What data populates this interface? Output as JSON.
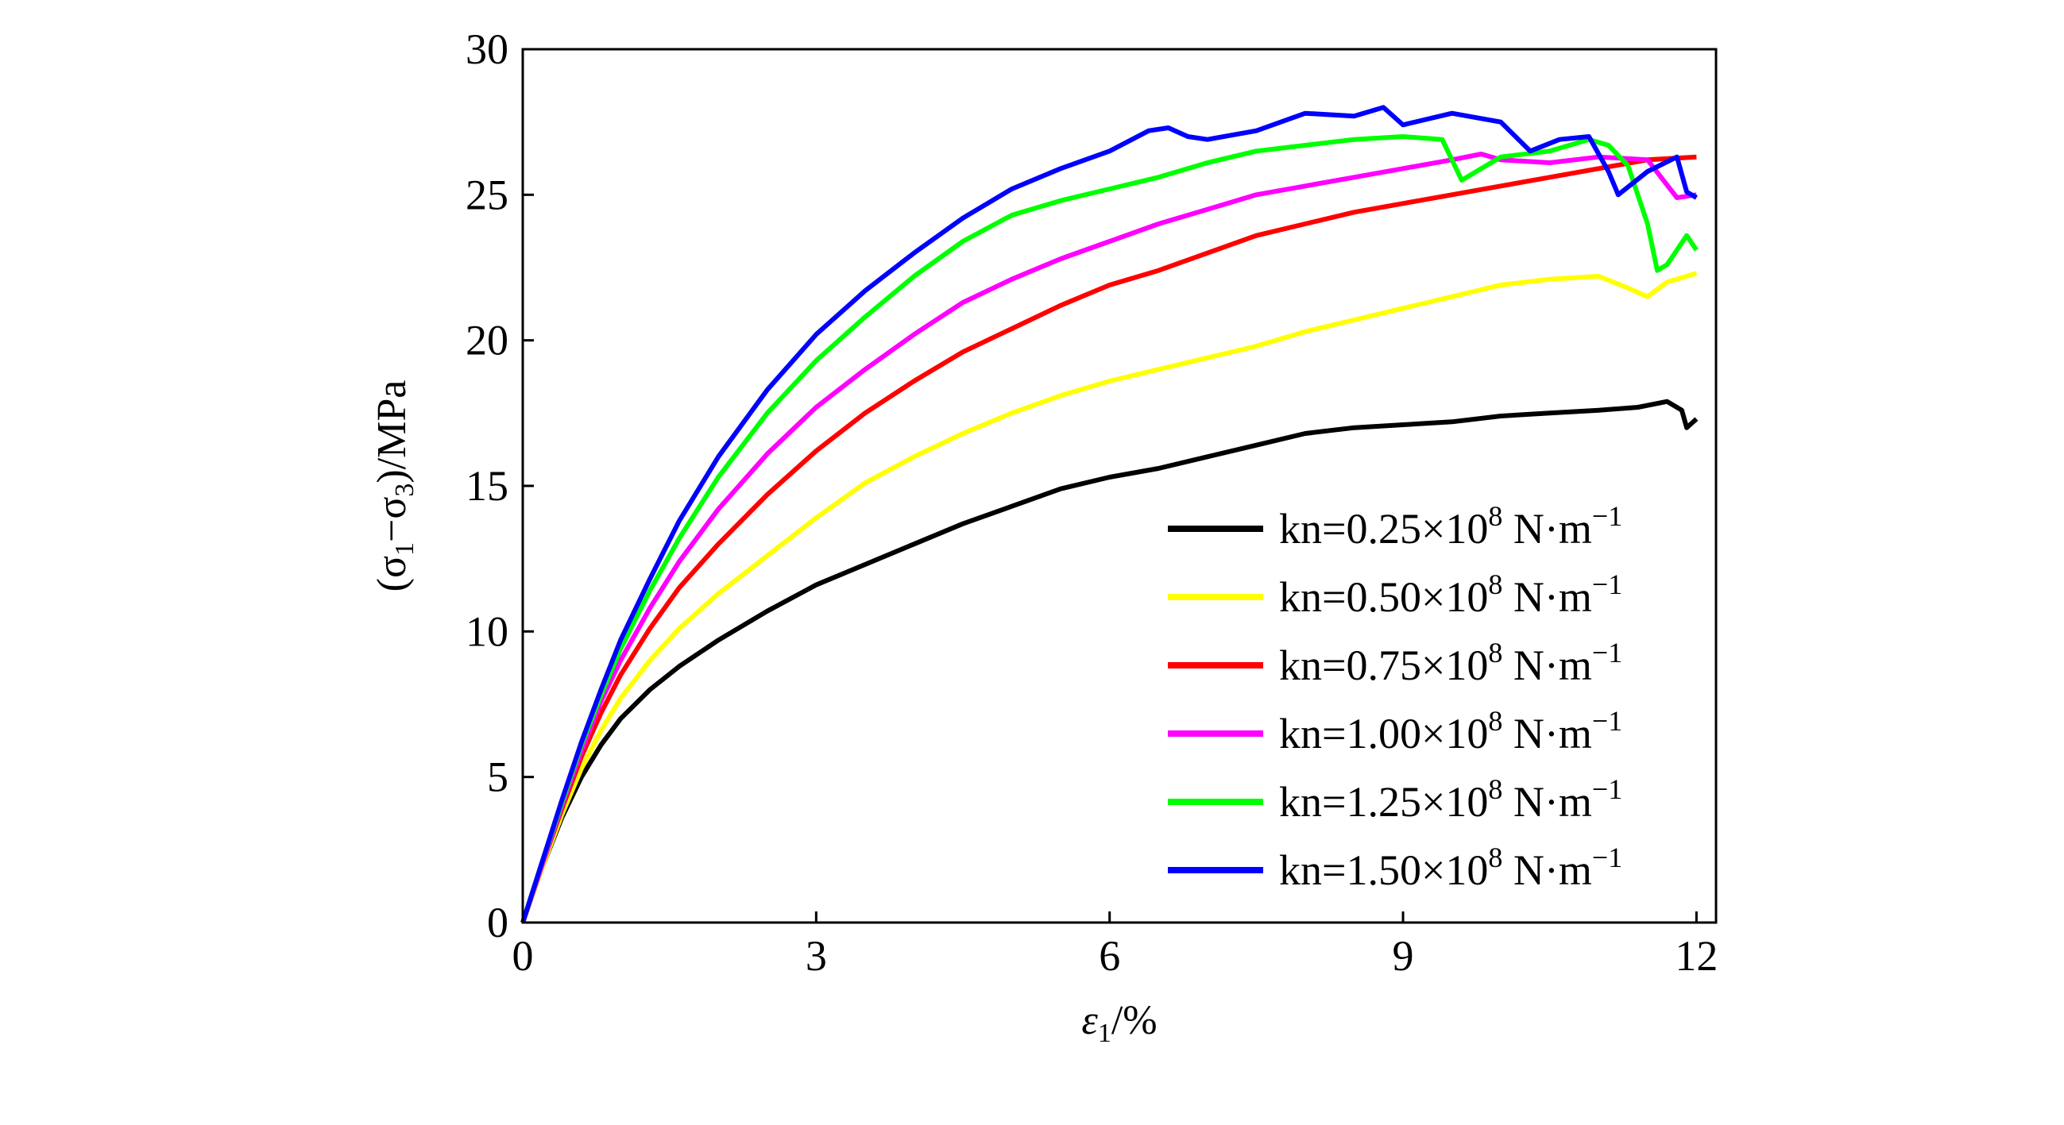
{
  "chart_data": {
    "type": "line",
    "xlabel": {
      "main": "ε",
      "sub": "1",
      "suffix": "/%"
    },
    "ylabel": {
      "open": "(σ",
      "sub1": "1",
      "mid": "−σ",
      "sub3": "3",
      "close": ")/MPa"
    },
    "xlim": [
      0,
      12.2
    ],
    "ylim": [
      0,
      30
    ],
    "xticks": [
      0,
      3,
      6,
      9,
      12
    ],
    "yticks": [
      0,
      5,
      10,
      15,
      20,
      25,
      30
    ],
    "legend_position": "lower-right",
    "series": [
      {
        "name": "kn=0.25×10",
        "exp": "8",
        "unit": "N·m",
        "unit_exp": "−1",
        "color": "#000000",
        "points": [
          [
            0,
            0
          ],
          [
            0.2,
            1.9
          ],
          [
            0.4,
            3.6
          ],
          [
            0.6,
            5.0
          ],
          [
            0.8,
            6.1
          ],
          [
            1.0,
            7.0
          ],
          [
            1.3,
            8.0
          ],
          [
            1.6,
            8.8
          ],
          [
            2.0,
            9.7
          ],
          [
            2.5,
            10.7
          ],
          [
            3.0,
            11.6
          ],
          [
            3.5,
            12.3
          ],
          [
            4.0,
            13.0
          ],
          [
            4.5,
            13.7
          ],
          [
            5.0,
            14.3
          ],
          [
            5.5,
            14.9
          ],
          [
            6.0,
            15.3
          ],
          [
            6.5,
            15.6
          ],
          [
            7.0,
            16.0
          ],
          [
            7.5,
            16.4
          ],
          [
            8.0,
            16.8
          ],
          [
            8.5,
            17.0
          ],
          [
            9.0,
            17.1
          ],
          [
            9.5,
            17.2
          ],
          [
            10.0,
            17.4
          ],
          [
            10.5,
            17.5
          ],
          [
            11.0,
            17.6
          ],
          [
            11.4,
            17.7
          ],
          [
            11.7,
            17.9
          ],
          [
            11.85,
            17.6
          ],
          [
            11.9,
            17.0
          ],
          [
            12.0,
            17.3
          ]
        ]
      },
      {
        "name": "kn=0.50×10",
        "exp": "8",
        "unit": "N·m",
        "unit_exp": "−1",
        "color": "#ffff00",
        "points": [
          [
            0,
            0
          ],
          [
            0.2,
            1.9
          ],
          [
            0.4,
            3.7
          ],
          [
            0.6,
            5.3
          ],
          [
            0.8,
            6.6
          ],
          [
            1.0,
            7.7
          ],
          [
            1.3,
            9.0
          ],
          [
            1.6,
            10.1
          ],
          [
            2.0,
            11.3
          ],
          [
            2.5,
            12.6
          ],
          [
            3.0,
            13.9
          ],
          [
            3.5,
            15.1
          ],
          [
            4.0,
            16.0
          ],
          [
            4.5,
            16.8
          ],
          [
            5.0,
            17.5
          ],
          [
            5.5,
            18.1
          ],
          [
            6.0,
            18.6
          ],
          [
            6.5,
            19.0
          ],
          [
            7.0,
            19.4
          ],
          [
            7.5,
            19.8
          ],
          [
            8.0,
            20.3
          ],
          [
            8.5,
            20.7
          ],
          [
            9.0,
            21.1
          ],
          [
            9.5,
            21.5
          ],
          [
            10.0,
            21.9
          ],
          [
            10.5,
            22.1
          ],
          [
            11.0,
            22.2
          ],
          [
            11.3,
            21.8
          ],
          [
            11.5,
            21.5
          ],
          [
            11.7,
            22.0
          ],
          [
            12.0,
            22.3
          ]
        ]
      },
      {
        "name": "kn=0.75×10",
        "exp": "8",
        "unit": "N·m",
        "unit_exp": "−1",
        "color": "#ff0000",
        "points": [
          [
            0,
            0
          ],
          [
            0.2,
            2.0
          ],
          [
            0.4,
            3.9
          ],
          [
            0.6,
            5.7
          ],
          [
            0.8,
            7.2
          ],
          [
            1.0,
            8.5
          ],
          [
            1.3,
            10.1
          ],
          [
            1.6,
            11.5
          ],
          [
            2.0,
            13.0
          ],
          [
            2.5,
            14.7
          ],
          [
            3.0,
            16.2
          ],
          [
            3.5,
            17.5
          ],
          [
            4.0,
            18.6
          ],
          [
            4.5,
            19.6
          ],
          [
            5.0,
            20.4
          ],
          [
            5.5,
            21.2
          ],
          [
            6.0,
            21.9
          ],
          [
            6.5,
            22.4
          ],
          [
            7.0,
            23.0
          ],
          [
            7.5,
            23.6
          ],
          [
            8.0,
            24.0
          ],
          [
            8.5,
            24.4
          ],
          [
            9.0,
            24.7
          ],
          [
            9.5,
            25.0
          ],
          [
            10.0,
            25.3
          ],
          [
            10.5,
            25.6
          ],
          [
            11.0,
            25.9
          ],
          [
            11.5,
            26.2
          ],
          [
            12.0,
            26.3
          ]
        ]
      },
      {
        "name": "kn=1.00×10",
        "exp": "8",
        "unit": "N·m",
        "unit_exp": "−1",
        "color": "#ff00ff",
        "points": [
          [
            0,
            0
          ],
          [
            0.2,
            2.0
          ],
          [
            0.4,
            4.0
          ],
          [
            0.6,
            5.9
          ],
          [
            0.8,
            7.6
          ],
          [
            1.0,
            9.0
          ],
          [
            1.3,
            10.8
          ],
          [
            1.6,
            12.4
          ],
          [
            2.0,
            14.2
          ],
          [
            2.5,
            16.1
          ],
          [
            3.0,
            17.7
          ],
          [
            3.5,
            19.0
          ],
          [
            4.0,
            20.2
          ],
          [
            4.5,
            21.3
          ],
          [
            5.0,
            22.1
          ],
          [
            5.5,
            22.8
          ],
          [
            6.0,
            23.4
          ],
          [
            6.5,
            24.0
          ],
          [
            7.0,
            24.5
          ],
          [
            7.5,
            25.0
          ],
          [
            8.0,
            25.3
          ],
          [
            8.5,
            25.6
          ],
          [
            9.0,
            25.9
          ],
          [
            9.5,
            26.2
          ],
          [
            9.8,
            26.4
          ],
          [
            10.0,
            26.2
          ],
          [
            10.5,
            26.1
          ],
          [
            11.0,
            26.3
          ],
          [
            11.5,
            26.2
          ],
          [
            11.8,
            24.9
          ],
          [
            12.0,
            25.0
          ]
        ]
      },
      {
        "name": "kn=1.25×10",
        "exp": "8",
        "unit": "N·m",
        "unit_exp": "−1",
        "color": "#00ff00",
        "points": [
          [
            0,
            0
          ],
          [
            0.2,
            2.1
          ],
          [
            0.4,
            4.1
          ],
          [
            0.6,
            6.1
          ],
          [
            0.8,
            7.8
          ],
          [
            1.0,
            9.4
          ],
          [
            1.3,
            11.4
          ],
          [
            1.6,
            13.2
          ],
          [
            2.0,
            15.3
          ],
          [
            2.5,
            17.5
          ],
          [
            3.0,
            19.3
          ],
          [
            3.5,
            20.8
          ],
          [
            4.0,
            22.2
          ],
          [
            4.5,
            23.4
          ],
          [
            5.0,
            24.3
          ],
          [
            5.5,
            24.8
          ],
          [
            6.0,
            25.2
          ],
          [
            6.5,
            25.6
          ],
          [
            7.0,
            26.1
          ],
          [
            7.5,
            26.5
          ],
          [
            8.0,
            26.7
          ],
          [
            8.5,
            26.9
          ],
          [
            9.0,
            27.0
          ],
          [
            9.4,
            26.9
          ],
          [
            9.6,
            25.5
          ],
          [
            10.0,
            26.3
          ],
          [
            10.5,
            26.5
          ],
          [
            10.9,
            26.9
          ],
          [
            11.1,
            26.7
          ],
          [
            11.3,
            26.0
          ],
          [
            11.5,
            24.0
          ],
          [
            11.6,
            22.4
          ],
          [
            11.7,
            22.6
          ],
          [
            11.9,
            23.6
          ],
          [
            12.0,
            23.1
          ]
        ]
      },
      {
        "name": "kn=1.50×10",
        "exp": "8",
        "unit": "N·m",
        "unit_exp": "−1",
        "color": "#0000ff",
        "points": [
          [
            0,
            0
          ],
          [
            0.2,
            2.1
          ],
          [
            0.4,
            4.2
          ],
          [
            0.6,
            6.2
          ],
          [
            0.8,
            8.0
          ],
          [
            1.0,
            9.7
          ],
          [
            1.3,
            11.8
          ],
          [
            1.6,
            13.8
          ],
          [
            2.0,
            16.0
          ],
          [
            2.5,
            18.3
          ],
          [
            3.0,
            20.2
          ],
          [
            3.5,
            21.7
          ],
          [
            4.0,
            23.0
          ],
          [
            4.5,
            24.2
          ],
          [
            5.0,
            25.2
          ],
          [
            5.5,
            25.9
          ],
          [
            6.0,
            26.5
          ],
          [
            6.4,
            27.2
          ],
          [
            6.6,
            27.3
          ],
          [
            6.8,
            27.0
          ],
          [
            7.0,
            26.9
          ],
          [
            7.5,
            27.2
          ],
          [
            8.0,
            27.8
          ],
          [
            8.5,
            27.7
          ],
          [
            8.8,
            28.0
          ],
          [
            9.0,
            27.4
          ],
          [
            9.5,
            27.8
          ],
          [
            10.0,
            27.5
          ],
          [
            10.3,
            26.5
          ],
          [
            10.6,
            26.9
          ],
          [
            10.9,
            27.0
          ],
          [
            11.1,
            25.8
          ],
          [
            11.2,
            25.0
          ],
          [
            11.5,
            25.8
          ],
          [
            11.8,
            26.3
          ],
          [
            11.9,
            25.1
          ],
          [
            12.0,
            24.9
          ]
        ]
      }
    ]
  }
}
